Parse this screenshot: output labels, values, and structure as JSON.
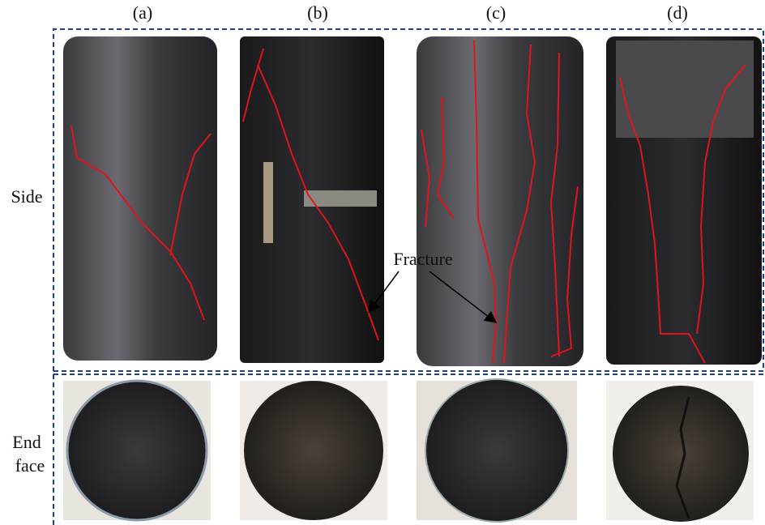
{
  "columns": [
    "(a)",
    "(b)",
    "(c)",
    "(d)"
  ],
  "rows": [
    {
      "label": "Side"
    },
    {
      "label_lines": [
        "End",
        "face"
      ]
    }
  ],
  "annotation": "Fracture"
}
